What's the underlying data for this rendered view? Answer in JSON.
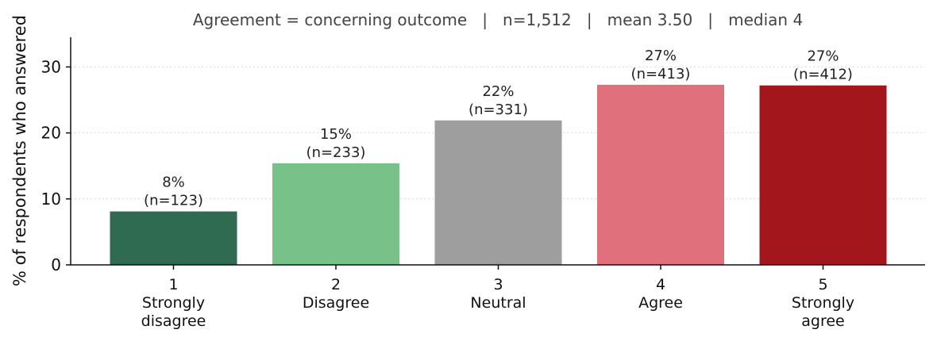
{
  "chart_data": {
    "type": "bar",
    "title": "Agreement = concerning outcome   |   n=1,512   |   mean 3.50   |   median 4",
    "ylabel": "% of respondents who answered",
    "xlabel": "",
    "ylim": [
      0,
      34.5
    ],
    "yticks": [
      0,
      10,
      20,
      30
    ],
    "grid": "horizontal dotted",
    "categories": [
      {
        "code": "1",
        "label": [
          "Strongly",
          "disagree"
        ],
        "value": 8.1,
        "label_pct": "8%",
        "label_n": "(n=123)",
        "color": "#2e6b50"
      },
      {
        "code": "2",
        "label": [
          "Disagree"
        ],
        "value": 15.4,
        "label_pct": "15%",
        "label_n": "(n=233)",
        "color": "#78c28a"
      },
      {
        "code": "3",
        "label": [
          "Neutral"
        ],
        "value": 21.9,
        "label_pct": "22%",
        "label_n": "(n=331)",
        "color": "#9e9e9e"
      },
      {
        "code": "4",
        "label": [
          "Agree"
        ],
        "value": 27.3,
        "label_pct": "27%",
        "label_n": "(n=413)",
        "color": "#e0707c"
      },
      {
        "code": "5",
        "label": [
          "Strongly",
          "agree"
        ],
        "value": 27.2,
        "label_pct": "27%",
        "label_n": "(n=412)",
        "color": "#a3161c"
      }
    ]
  }
}
